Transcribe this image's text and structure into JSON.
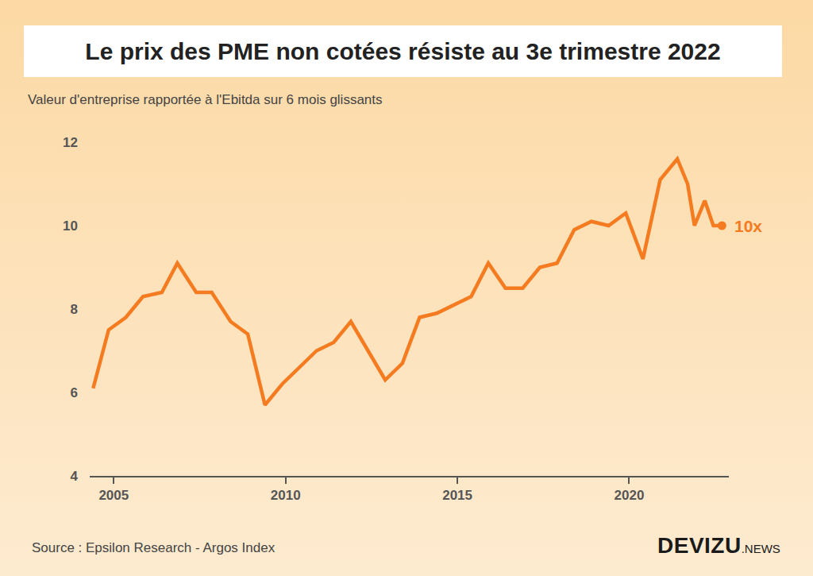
{
  "chart_data": {
    "type": "line",
    "title": "Le prix des PME non cotées résiste au 3e trimestre 2022",
    "subtitle": "Valeur d'entreprise rapportée à l'Ebitda sur 6 mois glissants",
    "source": "Source : Epsilon Research - Argos Index",
    "brand": "DEVIZU",
    "brand_suffix": ".NEWS",
    "x": [
      2004.4,
      2004.85,
      2005.35,
      2005.85,
      2006.4,
      2006.85,
      2007.4,
      2007.85,
      2008.4,
      2008.9,
      2009.4,
      2009.9,
      2010.4,
      2010.9,
      2011.4,
      2011.9,
      2012.4,
      2012.9,
      2013.4,
      2013.9,
      2014.4,
      2014.9,
      2015.4,
      2015.9,
      2016.4,
      2016.9,
      2017.4,
      2017.9,
      2018.4,
      2018.9,
      2019.4,
      2019.9,
      2020.4,
      2020.9,
      2021.4,
      2021.7,
      2021.9,
      2022.2,
      2022.45,
      2022.7
    ],
    "values": [
      6.1,
      7.5,
      7.8,
      8.3,
      8.4,
      9.1,
      8.4,
      8.4,
      7.7,
      7.4,
      5.7,
      6.2,
      6.6,
      7.0,
      7.2,
      7.7,
      7.0,
      6.3,
      6.7,
      7.8,
      7.9,
      8.1,
      8.3,
      9.1,
      8.5,
      8.5,
      9.0,
      9.1,
      9.9,
      10.1,
      10.0,
      10.3,
      9.2,
      11.1,
      11.6,
      11.0,
      10.0,
      10.6,
      10.0,
      10.0
    ],
    "color": "#f47b20",
    "marker": "end-dot",
    "xlim": [
      2004.3,
      2022.9
    ],
    "xticks": [
      2005,
      2010,
      2015,
      2020
    ],
    "ylim": [
      4,
      12
    ],
    "yticks": [
      4,
      6,
      8,
      10,
      12
    ],
    "grid": false,
    "annotations": [
      {
        "text": "10x",
        "x": 2022.7,
        "y": 10
      }
    ]
  }
}
